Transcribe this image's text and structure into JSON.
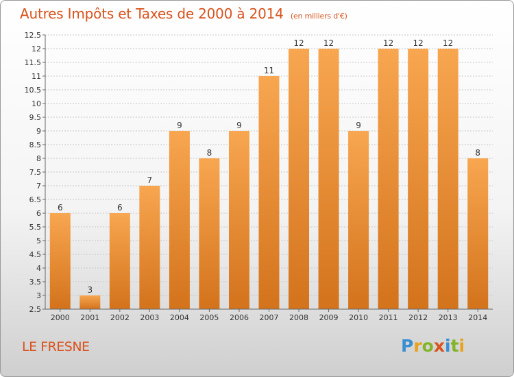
{
  "title": "Autres Impôts et Taxes de 2000 à 2014",
  "subtitle": "(en milliers d'€)",
  "location": "LE FRESNE",
  "logo": {
    "letters": [
      {
        "ch": "P",
        "color": "#3a8fd0"
      },
      {
        "ch": "r",
        "color": "#e8a21b"
      },
      {
        "ch": "o",
        "color": "#84b327"
      },
      {
        "ch": "x",
        "color": "#d9531e"
      },
      {
        "ch": "i",
        "color": "#3a8fd0"
      },
      {
        "ch": "t",
        "color": "#84b327"
      },
      {
        "ch": "i",
        "color": "#e8a21b"
      }
    ]
  },
  "colors": {
    "bar_top": "#f8a650",
    "bar_bottom": "#d3731c",
    "accent": "#d9531e",
    "grid": "#c8c8c8"
  },
  "chart_data": {
    "type": "bar",
    "categories": [
      "2000",
      "2001",
      "2002",
      "2003",
      "2004",
      "2005",
      "2006",
      "2007",
      "2008",
      "2009",
      "2010",
      "2011",
      "2012",
      "2013",
      "2014"
    ],
    "values": [
      6,
      3,
      6,
      7,
      9,
      8,
      9,
      11,
      12,
      12,
      9,
      12,
      12,
      12,
      8
    ],
    "ylim": [
      2.5,
      12.5
    ],
    "yticks": [
      "2.5",
      "3",
      "3.5",
      "4",
      "4.5",
      "5",
      "5.5",
      "6",
      "6.5",
      "7",
      "7.5",
      "8",
      "8.5",
      "9",
      "9.5",
      "10",
      "10.5",
      "11",
      "11.5",
      "12",
      "12.5"
    ],
    "grid": true,
    "xlabel": "",
    "ylabel": ""
  }
}
